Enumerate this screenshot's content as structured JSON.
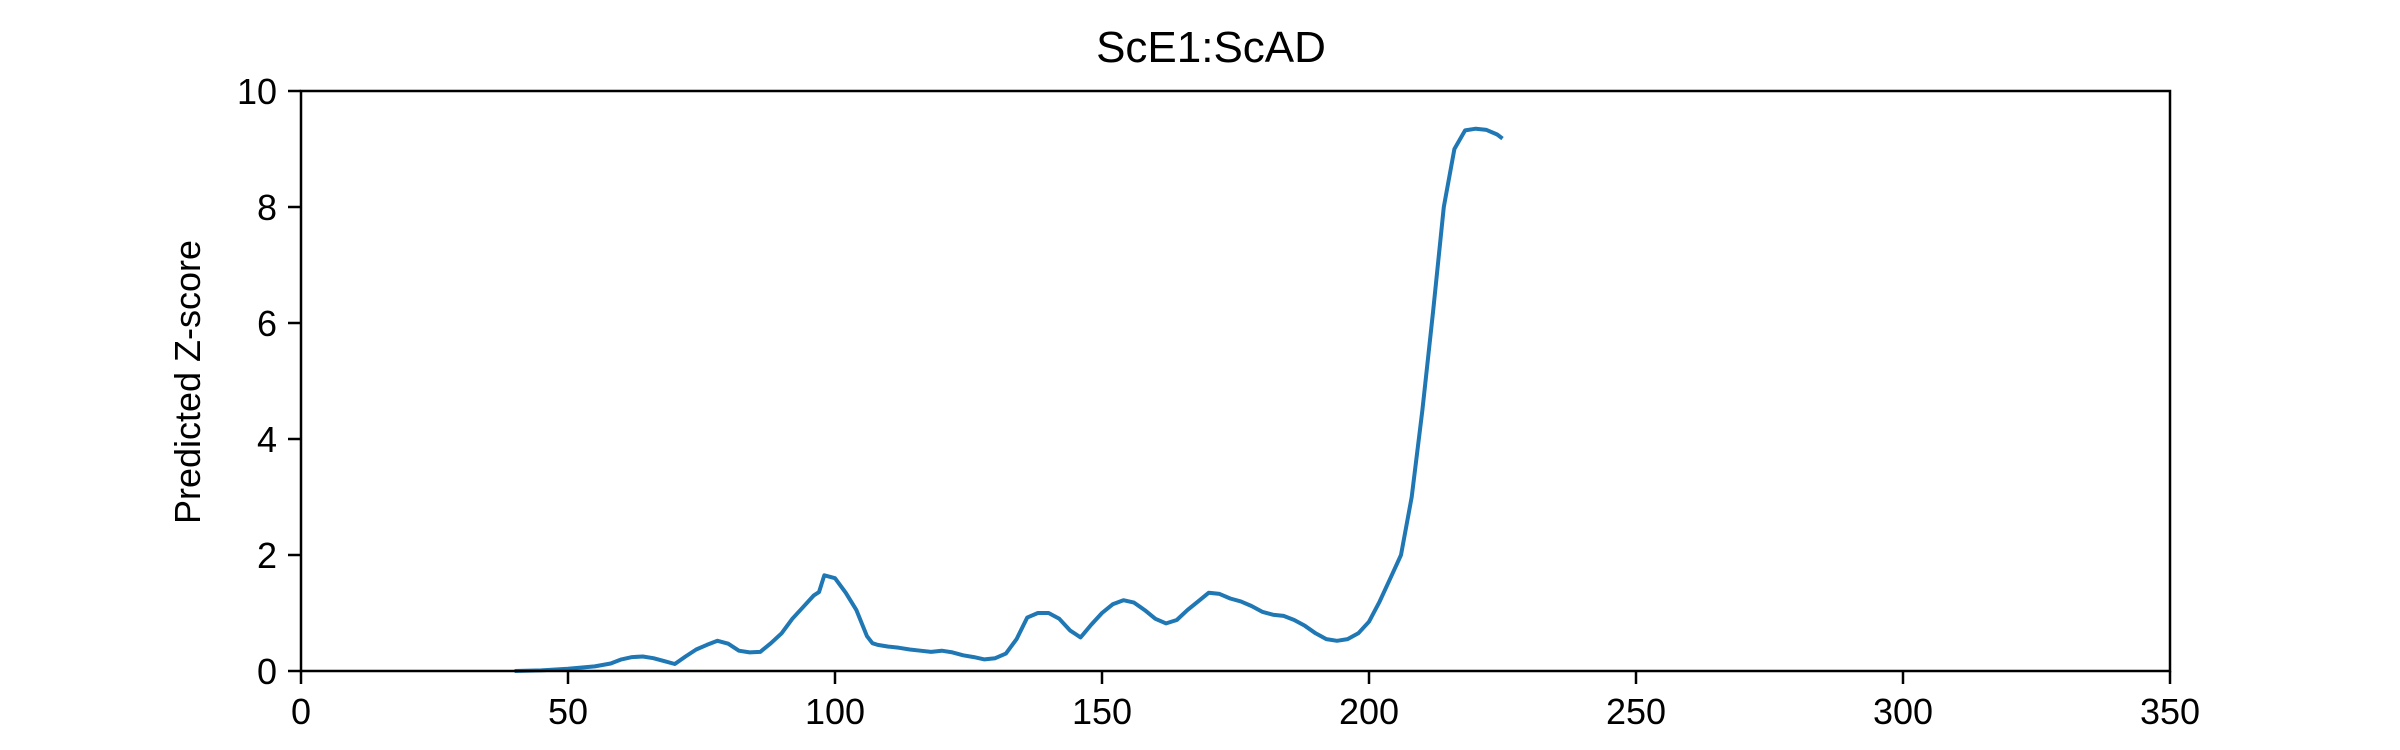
{
  "chart_data": {
    "type": "line",
    "title": "ScE1:ScAD",
    "xlabel": "",
    "ylabel": "Predicted Z-score",
    "xlim": [
      0,
      350
    ],
    "ylim": [
      0,
      10
    ],
    "xticks": [
      0,
      50,
      100,
      150,
      200,
      250,
      300,
      350
    ],
    "yticks": [
      0,
      2,
      4,
      6,
      8,
      10
    ],
    "xtick_labels": [
      "0",
      "50",
      "100",
      "150",
      "200",
      "250",
      "300",
      "350"
    ],
    "ytick_labels": [
      "0",
      "2",
      "4",
      "6",
      "8",
      "10"
    ],
    "grid": false,
    "legend": "none",
    "series": [
      {
        "color": "#1f77b4",
        "x": [
          40,
          45,
          50,
          55,
          58,
          60,
          62,
          64,
          66,
          68,
          70,
          72,
          74,
          76,
          78,
          80,
          82,
          84,
          86,
          88,
          90,
          92,
          94,
          96,
          97,
          98,
          100,
          102,
          104,
          106,
          107,
          108,
          110,
          112,
          114,
          116,
          118,
          120,
          122,
          124,
          126,
          128,
          130,
          132,
          134,
          136,
          138,
          140,
          142,
          144,
          146,
          148,
          150,
          152,
          154,
          156,
          158,
          160,
          162,
          164,
          166,
          168,
          170,
          172,
          174,
          176,
          178,
          180,
          182,
          184,
          186,
          188,
          190,
          192,
          194,
          196,
          198,
          200,
          202,
          204,
          206,
          208,
          210,
          212,
          214,
          216,
          218,
          220,
          222,
          224,
          225
        ],
        "y": [
          0.0,
          0.01,
          0.04,
          0.08,
          0.13,
          0.2,
          0.24,
          0.25,
          0.22,
          0.17,
          0.12,
          0.25,
          0.37,
          0.45,
          0.52,
          0.47,
          0.35,
          0.32,
          0.33,
          0.48,
          0.65,
          0.9,
          1.1,
          1.3,
          1.36,
          1.65,
          1.6,
          1.35,
          1.05,
          0.6,
          0.48,
          0.45,
          0.42,
          0.4,
          0.37,
          0.35,
          0.33,
          0.35,
          0.32,
          0.27,
          0.24,
          0.2,
          0.22,
          0.3,
          0.55,
          0.92,
          1.0,
          1.0,
          0.9,
          0.7,
          0.58,
          0.8,
          1.0,
          1.15,
          1.22,
          1.18,
          1.05,
          0.9,
          0.82,
          0.88,
          1.05,
          1.2,
          1.35,
          1.33,
          1.25,
          1.2,
          1.12,
          1.02,
          0.97,
          0.95,
          0.88,
          0.78,
          0.65,
          0.55,
          0.52,
          0.55,
          0.65,
          0.85,
          1.2,
          1.6,
          2.0,
          3.0,
          4.5,
          6.2,
          8.0,
          9.0,
          9.32,
          9.35,
          9.33,
          9.25,
          9.18
        ]
      }
    ]
  }
}
